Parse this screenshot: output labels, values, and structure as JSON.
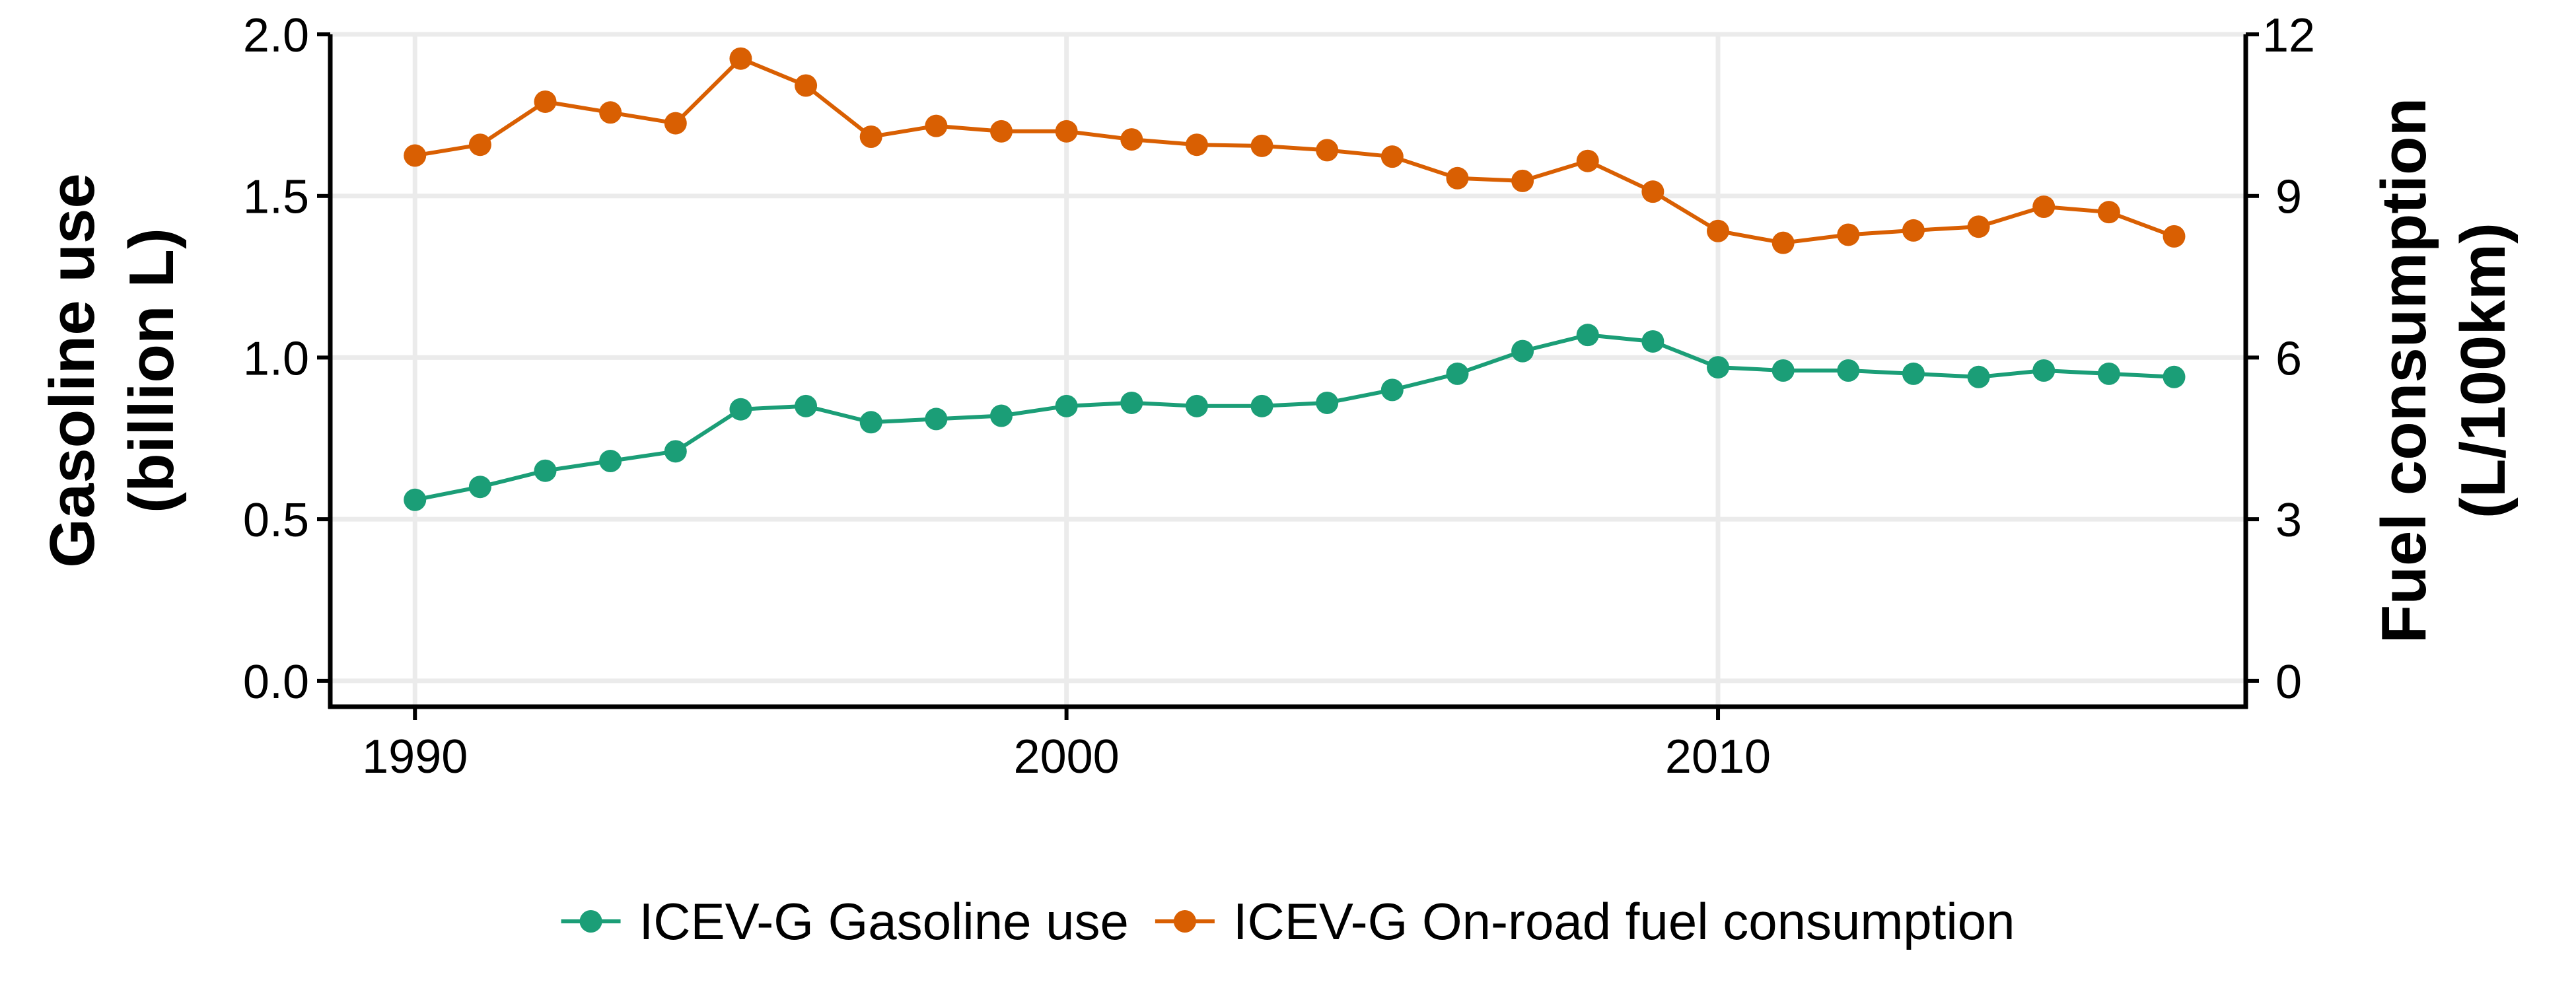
{
  "chart_data": {
    "type": "line",
    "x": [
      1990,
      1991,
      1992,
      1993,
      1994,
      1995,
      1996,
      1997,
      1998,
      1999,
      2000,
      2001,
      2002,
      2003,
      2004,
      2005,
      2006,
      2007,
      2008,
      2009,
      2010,
      2011,
      2012,
      2013,
      2014,
      2015,
      2016,
      2017
    ],
    "xlim": [
      1988.7,
      2018.1
    ],
    "x_ticks": [
      1990,
      2000,
      2010
    ],
    "x_tick_labels": [
      "1990",
      "2000",
      "2010"
    ],
    "y_left": {
      "title_lines": [
        "Gasoline use",
        "(billion L)"
      ],
      "lim": [
        -0.08,
        2.0
      ],
      "ticks": [
        0.0,
        0.5,
        1.0,
        1.5,
        2.0
      ],
      "tick_labels": [
        "0.0",
        "0.5",
        "1.0",
        "1.5",
        "2.0"
      ]
    },
    "y_right": {
      "title_lines": [
        "Fuel consumption",
        "(L/100km)"
      ],
      "lim": [
        -0.48,
        12
      ],
      "ticks": [
        0,
        3,
        6,
        9,
        12
      ],
      "tick_labels": [
        "0",
        "3",
        "6",
        "9",
        "12"
      ]
    },
    "grid": true,
    "legend_position": "bottom",
    "series": [
      {
        "name": "ICEV-G Gasoline use",
        "axis": "left",
        "color": "#1b9e77",
        "values": [
          0.56,
          0.6,
          0.65,
          0.68,
          0.71,
          0.84,
          0.85,
          0.8,
          0.81,
          0.82,
          0.85,
          0.86,
          0.85,
          0.85,
          0.86,
          0.9,
          0.95,
          1.02,
          1.07,
          1.05,
          0.97,
          0.96,
          0.96,
          0.95,
          0.94,
          0.96,
          0.95,
          0.94
        ]
      },
      {
        "name": "ICEV-G On-road fuel consumption",
        "axis": "right",
        "color": "#d95f02",
        "values": [
          9.75,
          9.95,
          10.75,
          10.55,
          10.35,
          11.55,
          11.05,
          10.1,
          10.3,
          10.2,
          10.2,
          10.05,
          9.95,
          9.93,
          9.85,
          9.73,
          9.33,
          9.28,
          9.65,
          9.08,
          8.35,
          8.13,
          8.28,
          8.36,
          8.43,
          8.8,
          8.7,
          8.25
        ]
      }
    ]
  }
}
